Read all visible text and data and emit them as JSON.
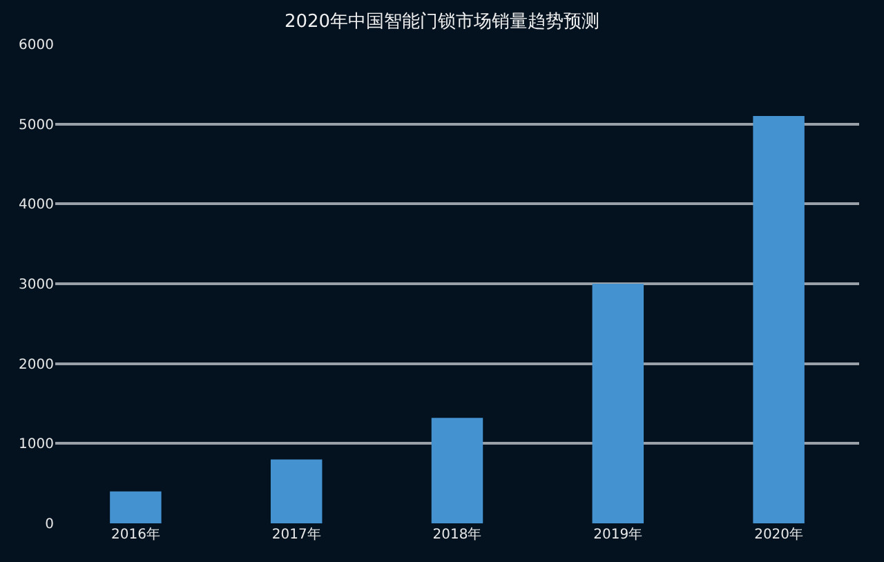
{
  "chart_data": {
    "type": "bar",
    "title": "2020年中国智能门锁市场销量趋势预测",
    "categories": [
      "2016年",
      "2017年",
      "2018年",
      "2019年",
      "2020年"
    ],
    "values": [
      400,
      800,
      1320,
      3000,
      5100
    ],
    "color": "#4592d0",
    "ylim": [
      0,
      6000
    ],
    "yticks": [
      0,
      1000,
      2000,
      3000,
      4000,
      5000,
      6000
    ],
    "grid": "y"
  }
}
